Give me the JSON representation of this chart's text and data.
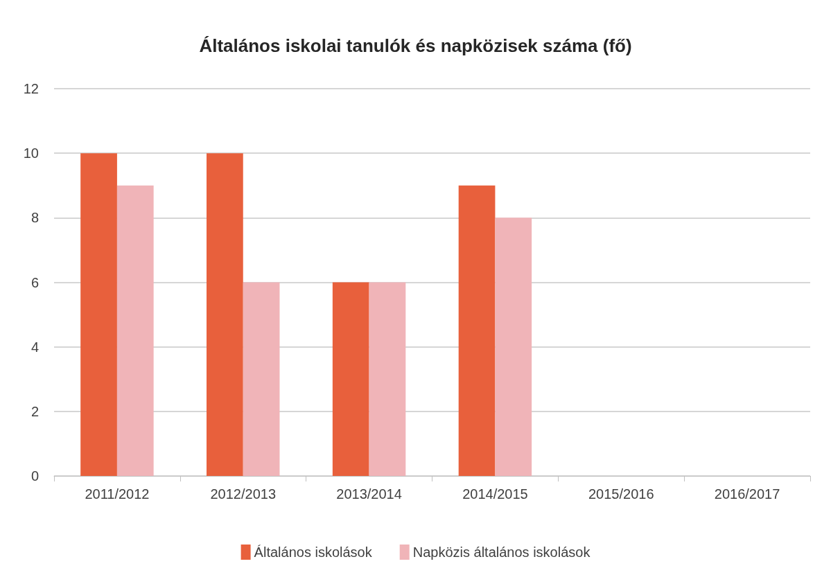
{
  "chart_data": {
    "type": "bar",
    "title": "Általános iskolai tanulók és napközisek száma (fő)",
    "categories": [
      "2011/2012",
      "2012/2013",
      "2013/2014",
      "2014/2015",
      "2015/2016",
      "2016/2017"
    ],
    "series": [
      {
        "name": "Általános iskolások",
        "color": "#e8603c",
        "values": [
          10,
          10,
          6,
          9,
          null,
          null
        ]
      },
      {
        "name": "Napközis általános iskolások",
        "color": "#f0b4b8",
        "values": [
          9,
          6,
          6,
          8,
          null,
          null
        ]
      }
    ],
    "ylim": [
      0,
      12
    ],
    "yticks": [
      0,
      2,
      4,
      6,
      8,
      10,
      12
    ],
    "grid": "y",
    "legend": "bottom"
  }
}
